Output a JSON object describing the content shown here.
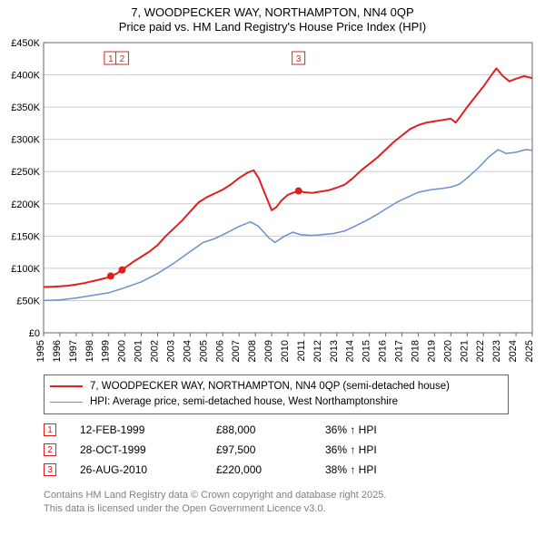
{
  "title_main": "7, WOODPECKER WAY, NORTHAMPTON, NN4 0QP",
  "title_sub": "Price paid vs. HM Land Registry's House Price Index (HPI)",
  "chart": {
    "type": "line",
    "background_color": "#ffffff",
    "plot_background_color": "#ffffff",
    "grid_color": "#cccccc",
    "axis_color": "#666666",
    "tick_font_size": 11,
    "x": {
      "min": 1995,
      "max": 2025,
      "ticks": [
        1995,
        1996,
        1997,
        1998,
        1999,
        2000,
        2001,
        2002,
        2003,
        2004,
        2005,
        2006,
        2007,
        2008,
        2009,
        2010,
        2011,
        2012,
        2013,
        2014,
        2015,
        2016,
        2017,
        2018,
        2019,
        2020,
        2021,
        2022,
        2023,
        2024,
        2025
      ],
      "label_rotation": -90
    },
    "y": {
      "min": 0,
      "max": 450000,
      "ticks": [
        0,
        50000,
        100000,
        150000,
        200000,
        250000,
        300000,
        350000,
        400000,
        450000
      ],
      "tick_labels": [
        "£0",
        "£50K",
        "£100K",
        "£150K",
        "£200K",
        "£250K",
        "£300K",
        "£350K",
        "£400K",
        "£450K"
      ]
    },
    "series": [
      {
        "id": "price_paid",
        "label": "7, WOODPECKER WAY, NORTHAMPTON, NN4 0QP (semi-detached house)",
        "color": "#e02020",
        "line_width": 2,
        "points": [
          [
            1995.0,
            71000
          ],
          [
            1995.5,
            71500
          ],
          [
            1996.0,
            72000
          ],
          [
            1996.5,
            73000
          ],
          [
            1997.0,
            75000
          ],
          [
            1997.5,
            77000
          ],
          [
            1998.0,
            80000
          ],
          [
            1998.5,
            83000
          ],
          [
            1999.0,
            86000
          ],
          [
            1999.12,
            88000
          ],
          [
            1999.5,
            92000
          ],
          [
            1999.82,
            97500
          ],
          [
            2000.0,
            101000
          ],
          [
            2000.5,
            110000
          ],
          [
            2001.0,
            118000
          ],
          [
            2001.5,
            126000
          ],
          [
            2002.0,
            136000
          ],
          [
            2002.5,
            150000
          ],
          [
            2003.0,
            162000
          ],
          [
            2003.5,
            174000
          ],
          [
            2004.0,
            188000
          ],
          [
            2004.5,
            202000
          ],
          [
            2005.0,
            210000
          ],
          [
            2005.5,
            216000
          ],
          [
            2006.0,
            222000
          ],
          [
            2006.5,
            230000
          ],
          [
            2007.0,
            240000
          ],
          [
            2007.5,
            248000
          ],
          [
            2007.9,
            252000
          ],
          [
            2008.2,
            240000
          ],
          [
            2008.6,
            215000
          ],
          [
            2009.0,
            190000
          ],
          [
            2009.3,
            195000
          ],
          [
            2009.6,
            205000
          ],
          [
            2010.0,
            214000
          ],
          [
            2010.3,
            217000
          ],
          [
            2010.65,
            220000
          ],
          [
            2011.0,
            218000
          ],
          [
            2011.5,
            217000
          ],
          [
            2012.0,
            219000
          ],
          [
            2012.5,
            221000
          ],
          [
            2013.0,
            225000
          ],
          [
            2013.5,
            230000
          ],
          [
            2014.0,
            240000
          ],
          [
            2014.5,
            252000
          ],
          [
            2015.0,
            262000
          ],
          [
            2015.5,
            272000
          ],
          [
            2016.0,
            284000
          ],
          [
            2016.5,
            296000
          ],
          [
            2017.0,
            306000
          ],
          [
            2017.5,
            316000
          ],
          [
            2018.0,
            322000
          ],
          [
            2018.5,
            326000
          ],
          [
            2019.0,
            328000
          ],
          [
            2019.5,
            330000
          ],
          [
            2020.0,
            332000
          ],
          [
            2020.3,
            326000
          ],
          [
            2020.6,
            336000
          ],
          [
            2021.0,
            350000
          ],
          [
            2021.5,
            366000
          ],
          [
            2022.0,
            382000
          ],
          [
            2022.5,
            400000
          ],
          [
            2022.8,
            410000
          ],
          [
            2023.2,
            398000
          ],
          [
            2023.6,
            390000
          ],
          [
            2024.0,
            394000
          ],
          [
            2024.5,
            398000
          ],
          [
            2025.0,
            395000
          ]
        ]
      },
      {
        "id": "hpi",
        "label": "HPI: Average price, semi-detached house, West Northamptonshire",
        "color": "#6b8fcf",
        "line_width": 1.5,
        "points": [
          [
            1995.0,
            50000
          ],
          [
            1996.0,
            51000
          ],
          [
            1997.0,
            54000
          ],
          [
            1998.0,
            58000
          ],
          [
            1999.0,
            62000
          ],
          [
            2000.0,
            70000
          ],
          [
            2001.0,
            79000
          ],
          [
            2002.0,
            92000
          ],
          [
            2003.0,
            108000
          ],
          [
            2004.0,
            126000
          ],
          [
            2004.8,
            140000
          ],
          [
            2005.5,
            146000
          ],
          [
            2006.0,
            152000
          ],
          [
            2007.0,
            165000
          ],
          [
            2007.7,
            172000
          ],
          [
            2008.2,
            165000
          ],
          [
            2008.8,
            148000
          ],
          [
            2009.2,
            140000
          ],
          [
            2009.8,
            150000
          ],
          [
            2010.3,
            156000
          ],
          [
            2010.8,
            152000
          ],
          [
            2011.5,
            151000
          ],
          [
            2012.0,
            152000
          ],
          [
            2012.8,
            154000
          ],
          [
            2013.5,
            158000
          ],
          [
            2014.0,
            164000
          ],
          [
            2014.8,
            174000
          ],
          [
            2015.5,
            184000
          ],
          [
            2016.0,
            192000
          ],
          [
            2016.8,
            204000
          ],
          [
            2017.5,
            212000
          ],
          [
            2018.0,
            218000
          ],
          [
            2018.8,
            222000
          ],
          [
            2019.5,
            224000
          ],
          [
            2020.0,
            226000
          ],
          [
            2020.5,
            230000
          ],
          [
            2021.0,
            240000
          ],
          [
            2021.7,
            256000
          ],
          [
            2022.3,
            272000
          ],
          [
            2022.9,
            284000
          ],
          [
            2023.4,
            278000
          ],
          [
            2024.0,
            280000
          ],
          [
            2024.6,
            284000
          ],
          [
            2025.0,
            283000
          ]
        ]
      }
    ],
    "sale_markers": {
      "color": "#e02020",
      "box_border": "#e02020",
      "box_fill": "#ffffff",
      "dot_radius": 4,
      "points": [
        {
          "n": "1",
          "x": 1999.12,
          "y": 88000
        },
        {
          "n": "2",
          "x": 1999.82,
          "y": 97500
        },
        {
          "n": "3",
          "x": 2010.65,
          "y": 220000
        }
      ]
    }
  },
  "legend": {
    "border_color": "#666666",
    "items": [
      {
        "color": "#e02020",
        "width": 2,
        "label": "7, WOODPECKER WAY, NORTHAMPTON, NN4 0QP (semi-detached house)"
      },
      {
        "color": "#6b8fcf",
        "width": 1.5,
        "label": "HPI: Average price, semi-detached house, West Northamptonshire"
      }
    ]
  },
  "events": {
    "marker_border": "#e02020",
    "rows": [
      {
        "n": "1",
        "date": "12-FEB-1999",
        "price": "£88,000",
        "delta": "36% ↑ HPI"
      },
      {
        "n": "2",
        "date": "28-OCT-1999",
        "price": "£97,500",
        "delta": "36% ↑ HPI"
      },
      {
        "n": "3",
        "date": "26-AUG-2010",
        "price": "£220,000",
        "delta": "38% ↑ HPI"
      }
    ]
  },
  "footer": {
    "color": "#808080",
    "line1": "Contains HM Land Registry data © Crown copyright and database right 2025.",
    "line2": "This data is licensed under the Open Government Licence v3.0."
  }
}
